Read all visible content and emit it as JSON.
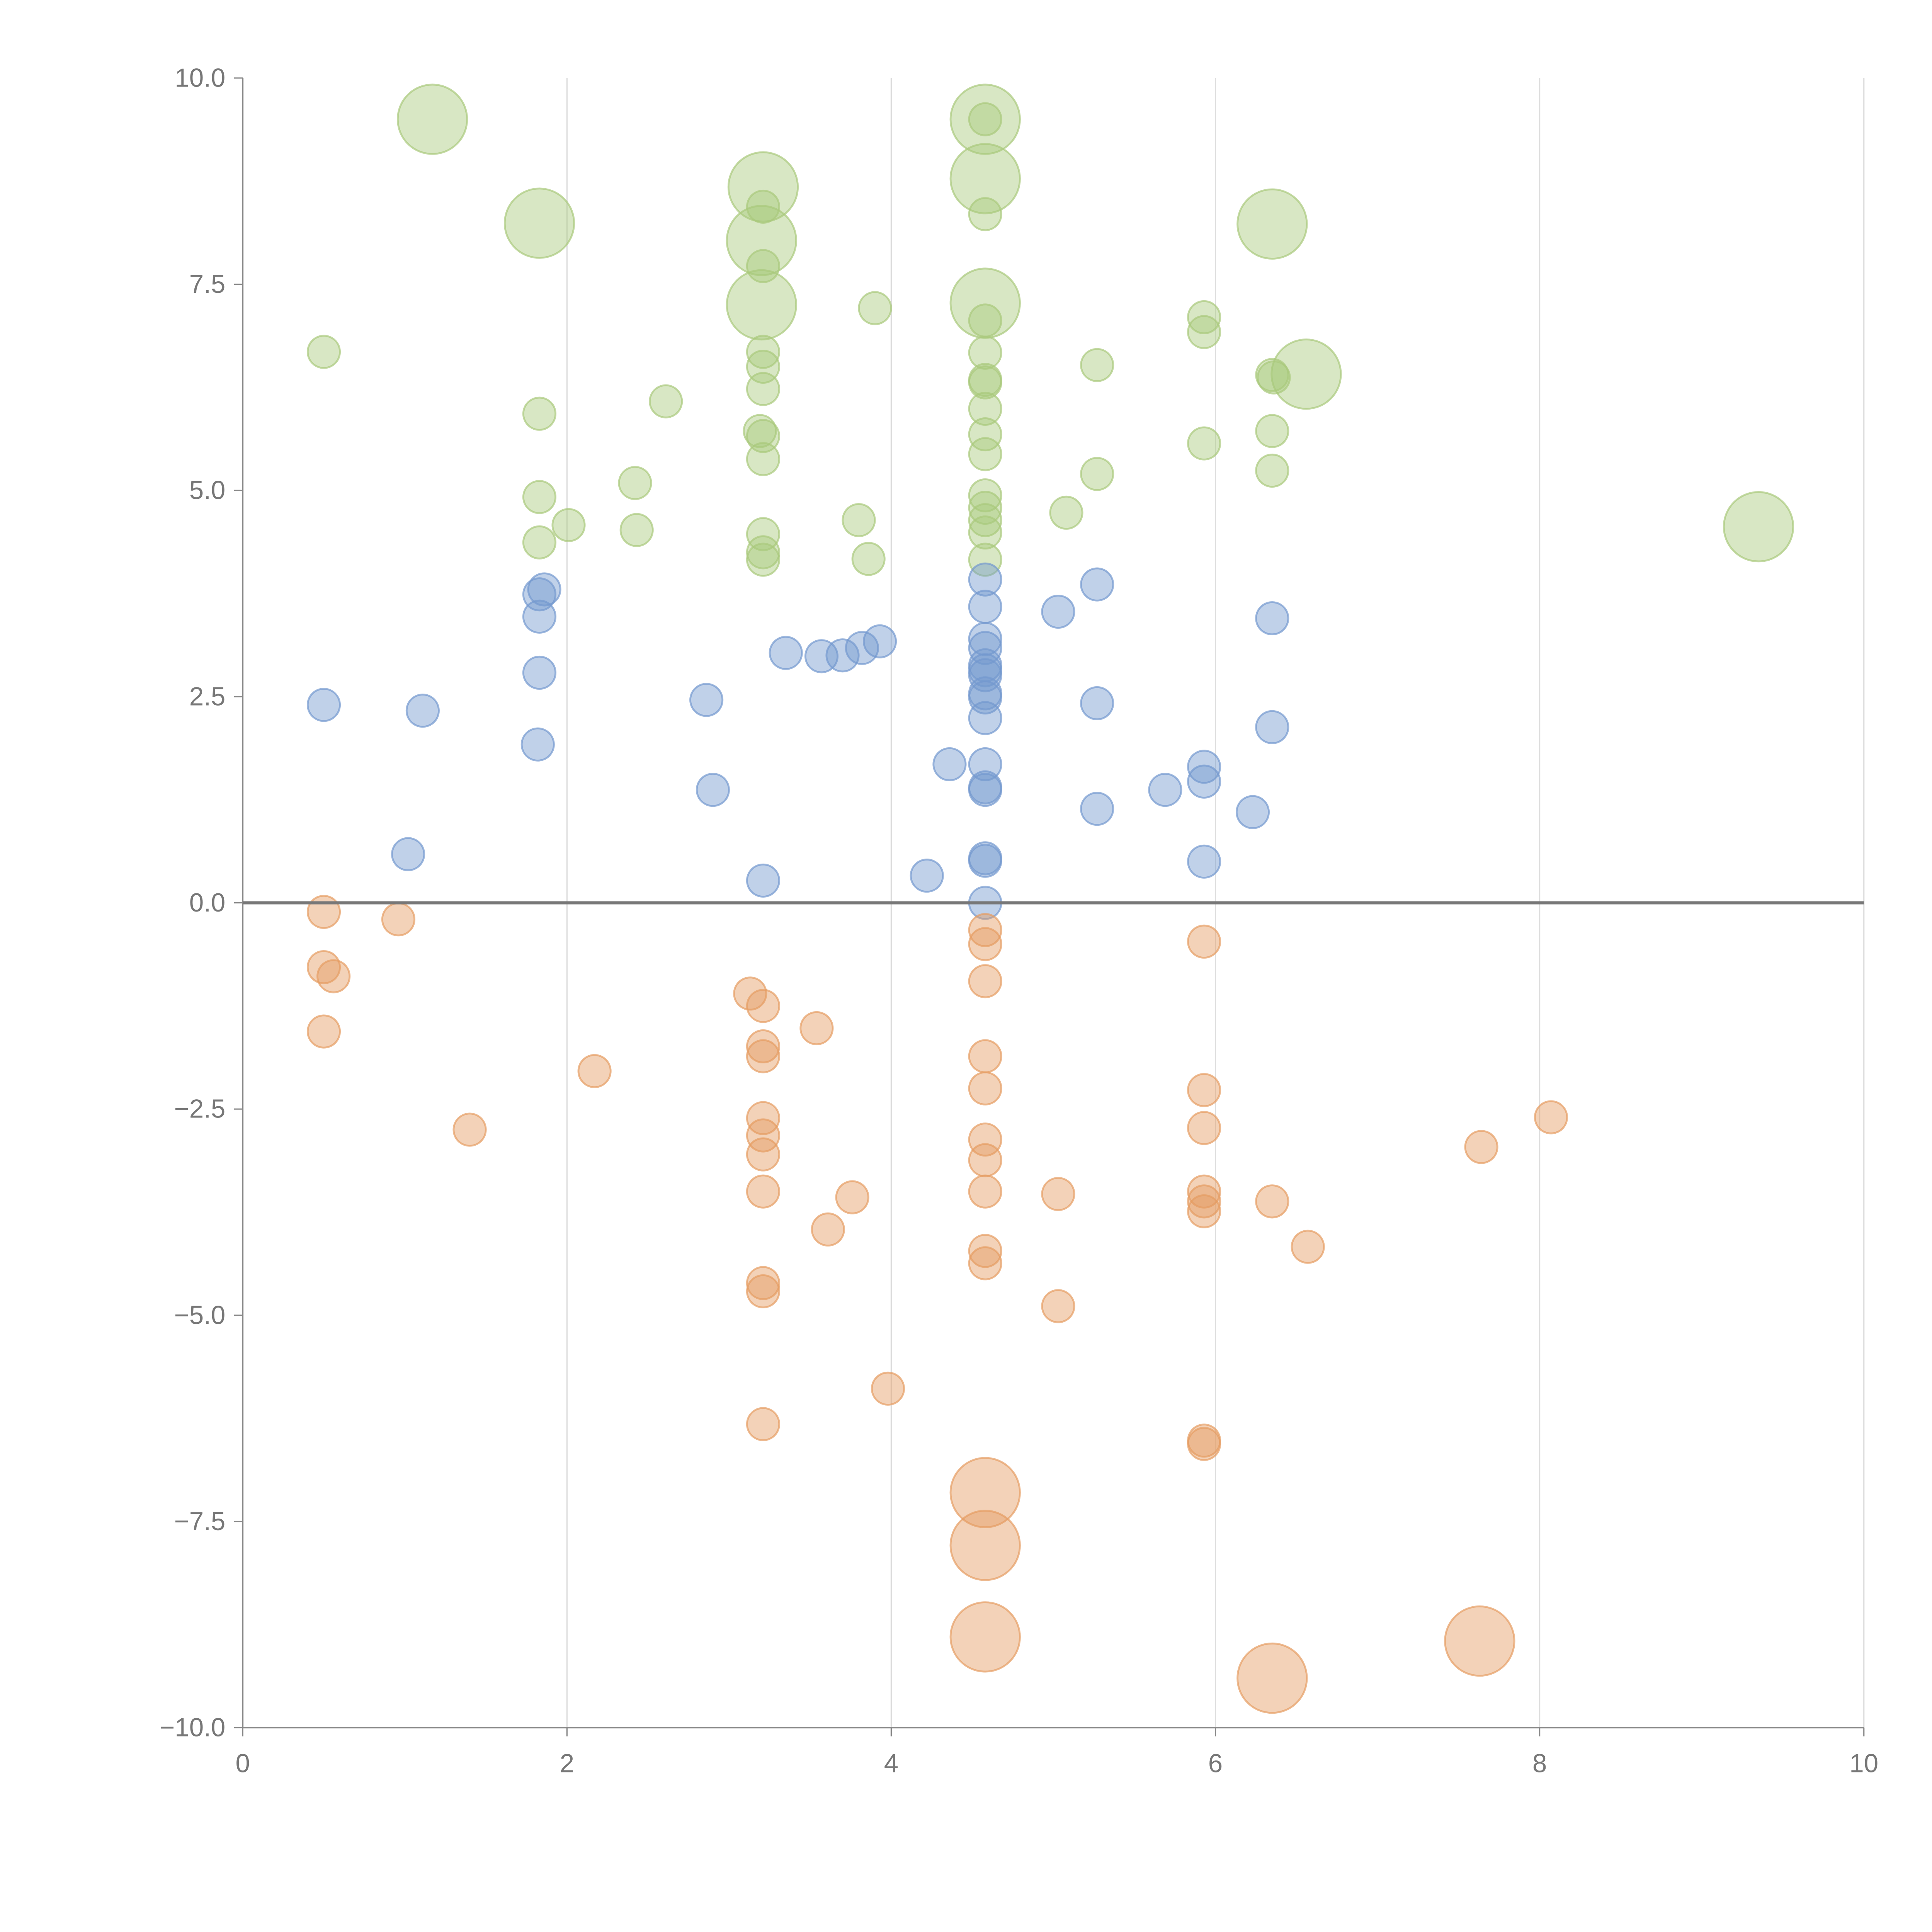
{
  "chart_data": {
    "type": "scatter",
    "title": "",
    "xlabel": "",
    "ylabel": "",
    "xlim": [
      0,
      10
    ],
    "ylim": [
      -10,
      10
    ],
    "x_ticks": [
      "0",
      "2",
      "4",
      "6",
      "8",
      "10"
    ],
    "x_tick_values": [
      0,
      2,
      4,
      6,
      8,
      10
    ],
    "y_ticks": [
      "10.0",
      "7.5",
      "5.0",
      "2.5",
      "0.0",
      "−2.5",
      "−5.0",
      "−7.5",
      "−10.0"
    ],
    "y_tick_values": [
      10,
      7.5,
      5,
      2.5,
      0,
      -2.5,
      -5,
      -7.5,
      -10
    ],
    "grid": "vertical",
    "point_format": [
      "x",
      "y",
      "size"
    ],
    "series": [
      {
        "color": "#a9c97c",
        "points": [
          [
            1.17,
            9.5,
            2
          ],
          [
            1.83,
            8.24,
            2
          ],
          [
            3.21,
            8.68,
            2
          ],
          [
            3.2,
            8.03,
            2
          ],
          [
            3.2,
            7.25,
            2
          ],
          [
            4.58,
            9.5,
            2
          ],
          [
            4.58,
            8.78,
            2
          ],
          [
            4.58,
            7.27,
            2
          ],
          [
            6.35,
            8.23,
            2
          ],
          [
            6.56,
            6.41,
            2
          ],
          [
            9.35,
            4.56,
            2
          ],
          [
            0.5,
            6.68,
            1
          ],
          [
            1.83,
            5.93,
            1
          ],
          [
            1.83,
            4.92,
            1
          ],
          [
            1.83,
            4.37,
            1
          ],
          [
            2.01,
            4.58,
            1
          ],
          [
            2.42,
            5.09,
            1
          ],
          [
            2.43,
            4.52,
            1
          ],
          [
            2.61,
            6.08,
            1
          ],
          [
            3.21,
            8.44,
            1
          ],
          [
            3.21,
            7.72,
            1
          ],
          [
            3.21,
            6.68,
            1
          ],
          [
            3.21,
            6.5,
            1
          ],
          [
            3.21,
            6.23,
            1
          ],
          [
            3.19,
            5.72,
            1
          ],
          [
            3.21,
            5.66,
            1
          ],
          [
            3.21,
            5.38,
            1
          ],
          [
            3.21,
            4.47,
            1
          ],
          [
            3.21,
            4.25,
            1
          ],
          [
            3.21,
            4.16,
            1
          ],
          [
            3.8,
            4.64,
            1
          ],
          [
            3.86,
            4.17,
            1
          ],
          [
            3.9,
            7.21,
            1
          ],
          [
            4.58,
            9.5,
            1
          ],
          [
            4.58,
            8.35,
            1
          ],
          [
            4.58,
            7.06,
            1
          ],
          [
            4.58,
            6.67,
            1
          ],
          [
            4.58,
            6.34,
            1
          ],
          [
            4.58,
            6.31,
            1
          ],
          [
            4.58,
            5.99,
            1
          ],
          [
            4.58,
            5.68,
            1
          ],
          [
            4.58,
            5.44,
            1
          ],
          [
            4.58,
            4.94,
            1
          ],
          [
            4.58,
            4.79,
            1
          ],
          [
            4.58,
            4.64,
            1
          ],
          [
            4.58,
            4.49,
            1
          ],
          [
            4.58,
            4.16,
            1
          ],
          [
            5.08,
            4.73,
            1
          ],
          [
            5.27,
            6.52,
            1
          ],
          [
            5.27,
            5.2,
            1
          ],
          [
            5.93,
            7.1,
            1
          ],
          [
            5.93,
            6.92,
            1
          ],
          [
            5.93,
            5.57,
            1
          ],
          [
            6.35,
            6.4,
            1
          ],
          [
            6.36,
            6.37,
            1
          ],
          [
            6.35,
            5.72,
            1
          ],
          [
            6.35,
            5.24,
            1
          ]
        ]
      },
      {
        "color": "#7399cf",
        "points": [
          [
            0.5,
            2.4,
            1
          ],
          [
            1.11,
            2.33,
            1
          ],
          [
            1.02,
            0.59,
            1
          ],
          [
            1.83,
            3.74,
            1
          ],
          [
            1.86,
            3.8,
            1
          ],
          [
            1.83,
            3.47,
            1
          ],
          [
            1.83,
            2.79,
            1
          ],
          [
            1.82,
            1.92,
            1
          ],
          [
            2.86,
            2.46,
            1
          ],
          [
            2.9,
            1.37,
            1
          ],
          [
            3.21,
            0.27,
            1
          ],
          [
            3.35,
            3.03,
            1
          ],
          [
            3.57,
            2.99,
            1
          ],
          [
            3.7,
            3.0,
            1
          ],
          [
            3.82,
            3.09,
            1
          ],
          [
            3.93,
            3.17,
            1
          ],
          [
            4.22,
            0.33,
            1
          ],
          [
            4.36,
            1.68,
            1
          ],
          [
            4.58,
            3.92,
            1
          ],
          [
            4.58,
            3.59,
            1
          ],
          [
            4.58,
            3.2,
            1
          ],
          [
            4.58,
            3.09,
            1
          ],
          [
            4.58,
            2.88,
            1
          ],
          [
            4.58,
            2.82,
            1
          ],
          [
            4.58,
            2.76,
            1
          ],
          [
            4.58,
            2.54,
            1
          ],
          [
            4.58,
            2.49,
            1
          ],
          [
            4.58,
            2.24,
            1
          ],
          [
            4.58,
            1.68,
            1
          ],
          [
            4.58,
            1.4,
            1
          ],
          [
            4.58,
            1.37,
            1
          ],
          [
            4.58,
            0.54,
            1
          ],
          [
            4.58,
            0.51,
            1
          ],
          [
            4.58,
            0.0,
            1
          ],
          [
            5.03,
            3.53,
            1
          ],
          [
            5.27,
            3.86,
            1
          ],
          [
            5.27,
            2.42,
            1
          ],
          [
            5.27,
            1.14,
            1
          ],
          [
            5.69,
            1.37,
            1
          ],
          [
            5.93,
            1.65,
            1
          ],
          [
            5.93,
            1.47,
            1
          ],
          [
            5.93,
            0.5,
            1
          ],
          [
            6.23,
            1.1,
            1
          ],
          [
            6.35,
            3.45,
            1
          ],
          [
            6.35,
            2.13,
            1
          ]
        ]
      },
      {
        "color": "#e59c62",
        "points": [
          [
            0.5,
            -0.11,
            1
          ],
          [
            0.96,
            -0.2,
            1
          ],
          [
            0.5,
            -0.78,
            1
          ],
          [
            0.56,
            -0.89,
            1
          ],
          [
            0.5,
            -1.56,
            1
          ],
          [
            1.4,
            -2.75,
            1
          ],
          [
            2.17,
            -2.04,
            1
          ],
          [
            3.13,
            -1.1,
            1
          ],
          [
            3.21,
            -1.25,
            1
          ],
          [
            3.21,
            -1.74,
            1
          ],
          [
            3.21,
            -1.86,
            1
          ],
          [
            3.21,
            -2.61,
            1
          ],
          [
            3.21,
            -2.82,
            1
          ],
          [
            3.21,
            -3.05,
            1
          ],
          [
            3.21,
            -3.5,
            1
          ],
          [
            3.21,
            -4.61,
            1
          ],
          [
            3.21,
            -4.71,
            1
          ],
          [
            3.21,
            -6.32,
            1
          ],
          [
            3.54,
            -1.52,
            1
          ],
          [
            3.61,
            -3.96,
            1
          ],
          [
            3.76,
            -3.57,
            1
          ],
          [
            3.98,
            -5.89,
            1
          ],
          [
            4.58,
            -0.33,
            1
          ],
          [
            4.58,
            -0.5,
            1
          ],
          [
            4.58,
            -0.95,
            1
          ],
          [
            4.58,
            -1.86,
            1
          ],
          [
            4.58,
            -2.25,
            1
          ],
          [
            4.58,
            -2.87,
            1
          ],
          [
            4.58,
            -3.12,
            1
          ],
          [
            4.58,
            -3.5,
            1
          ],
          [
            4.58,
            -4.22,
            1
          ],
          [
            4.58,
            -4.37,
            1
          ],
          [
            5.03,
            -3.53,
            1
          ],
          [
            5.03,
            -4.89,
            1
          ],
          [
            5.93,
            -0.47,
            1
          ],
          [
            5.93,
            -2.27,
            1
          ],
          [
            5.93,
            -2.73,
            1
          ],
          [
            5.93,
            -3.5,
            1
          ],
          [
            5.93,
            -3.62,
            1
          ],
          [
            5.93,
            -3.74,
            1
          ],
          [
            5.93,
            -6.52,
            1
          ],
          [
            5.93,
            -6.56,
            1
          ],
          [
            6.35,
            -3.62,
            1
          ],
          [
            6.57,
            -4.17,
            1
          ],
          [
            7.64,
            -2.96,
            1
          ],
          [
            8.07,
            -2.6,
            1
          ],
          [
            4.58,
            -7.15,
            2
          ],
          [
            4.58,
            -7.79,
            2
          ],
          [
            4.58,
            -8.9,
            2
          ],
          [
            6.35,
            -9.4,
            2
          ],
          [
            7.63,
            -8.95,
            2
          ]
        ]
      }
    ]
  }
}
